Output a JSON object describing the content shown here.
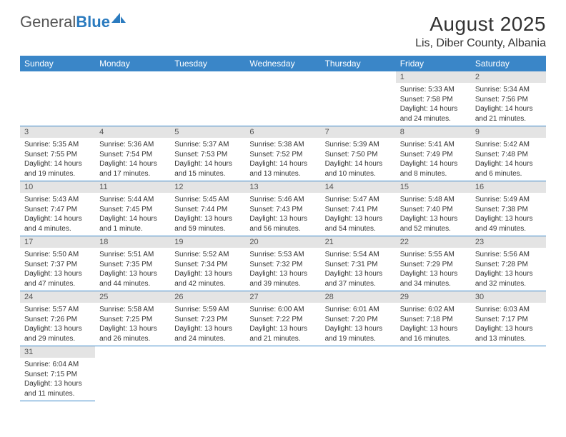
{
  "logo": {
    "text_general": "General",
    "text_blue": "Blue"
  },
  "title": "August 2025",
  "location": "Lis, Diber County, Albania",
  "colors": {
    "header_bg": "#3a86c8",
    "header_text": "#ffffff",
    "daynum_bg": "#e4e4e4",
    "row_border": "#3a86c8",
    "logo_blue": "#2b7bbf"
  },
  "weekdays": [
    "Sunday",
    "Monday",
    "Tuesday",
    "Wednesday",
    "Thursday",
    "Friday",
    "Saturday"
  ],
  "weeks": [
    [
      null,
      null,
      null,
      null,
      null,
      {
        "n": "1",
        "sunrise": "5:33 AM",
        "sunset": "7:58 PM",
        "daylight": "14 hours and 24 minutes."
      },
      {
        "n": "2",
        "sunrise": "5:34 AM",
        "sunset": "7:56 PM",
        "daylight": "14 hours and 21 minutes."
      }
    ],
    [
      {
        "n": "3",
        "sunrise": "5:35 AM",
        "sunset": "7:55 PM",
        "daylight": "14 hours and 19 minutes."
      },
      {
        "n": "4",
        "sunrise": "5:36 AM",
        "sunset": "7:54 PM",
        "daylight": "14 hours and 17 minutes."
      },
      {
        "n": "5",
        "sunrise": "5:37 AM",
        "sunset": "7:53 PM",
        "daylight": "14 hours and 15 minutes."
      },
      {
        "n": "6",
        "sunrise": "5:38 AM",
        "sunset": "7:52 PM",
        "daylight": "14 hours and 13 minutes."
      },
      {
        "n": "7",
        "sunrise": "5:39 AM",
        "sunset": "7:50 PM",
        "daylight": "14 hours and 10 minutes."
      },
      {
        "n": "8",
        "sunrise": "5:41 AM",
        "sunset": "7:49 PM",
        "daylight": "14 hours and 8 minutes."
      },
      {
        "n": "9",
        "sunrise": "5:42 AM",
        "sunset": "7:48 PM",
        "daylight": "14 hours and 6 minutes."
      }
    ],
    [
      {
        "n": "10",
        "sunrise": "5:43 AM",
        "sunset": "7:47 PM",
        "daylight": "14 hours and 4 minutes."
      },
      {
        "n": "11",
        "sunrise": "5:44 AM",
        "sunset": "7:45 PM",
        "daylight": "14 hours and 1 minute."
      },
      {
        "n": "12",
        "sunrise": "5:45 AM",
        "sunset": "7:44 PM",
        "daylight": "13 hours and 59 minutes."
      },
      {
        "n": "13",
        "sunrise": "5:46 AM",
        "sunset": "7:43 PM",
        "daylight": "13 hours and 56 minutes."
      },
      {
        "n": "14",
        "sunrise": "5:47 AM",
        "sunset": "7:41 PM",
        "daylight": "13 hours and 54 minutes."
      },
      {
        "n": "15",
        "sunrise": "5:48 AM",
        "sunset": "7:40 PM",
        "daylight": "13 hours and 52 minutes."
      },
      {
        "n": "16",
        "sunrise": "5:49 AM",
        "sunset": "7:38 PM",
        "daylight": "13 hours and 49 minutes."
      }
    ],
    [
      {
        "n": "17",
        "sunrise": "5:50 AM",
        "sunset": "7:37 PM",
        "daylight": "13 hours and 47 minutes."
      },
      {
        "n": "18",
        "sunrise": "5:51 AM",
        "sunset": "7:35 PM",
        "daylight": "13 hours and 44 minutes."
      },
      {
        "n": "19",
        "sunrise": "5:52 AM",
        "sunset": "7:34 PM",
        "daylight": "13 hours and 42 minutes."
      },
      {
        "n": "20",
        "sunrise": "5:53 AM",
        "sunset": "7:32 PM",
        "daylight": "13 hours and 39 minutes."
      },
      {
        "n": "21",
        "sunrise": "5:54 AM",
        "sunset": "7:31 PM",
        "daylight": "13 hours and 37 minutes."
      },
      {
        "n": "22",
        "sunrise": "5:55 AM",
        "sunset": "7:29 PM",
        "daylight": "13 hours and 34 minutes."
      },
      {
        "n": "23",
        "sunrise": "5:56 AM",
        "sunset": "7:28 PM",
        "daylight": "13 hours and 32 minutes."
      }
    ],
    [
      {
        "n": "24",
        "sunrise": "5:57 AM",
        "sunset": "7:26 PM",
        "daylight": "13 hours and 29 minutes."
      },
      {
        "n": "25",
        "sunrise": "5:58 AM",
        "sunset": "7:25 PM",
        "daylight": "13 hours and 26 minutes."
      },
      {
        "n": "26",
        "sunrise": "5:59 AM",
        "sunset": "7:23 PM",
        "daylight": "13 hours and 24 minutes."
      },
      {
        "n": "27",
        "sunrise": "6:00 AM",
        "sunset": "7:22 PM",
        "daylight": "13 hours and 21 minutes."
      },
      {
        "n": "28",
        "sunrise": "6:01 AM",
        "sunset": "7:20 PM",
        "daylight": "13 hours and 19 minutes."
      },
      {
        "n": "29",
        "sunrise": "6:02 AM",
        "sunset": "7:18 PM",
        "daylight": "13 hours and 16 minutes."
      },
      {
        "n": "30",
        "sunrise": "6:03 AM",
        "sunset": "7:17 PM",
        "daylight": "13 hours and 13 minutes."
      }
    ],
    [
      {
        "n": "31",
        "sunrise": "6:04 AM",
        "sunset": "7:15 PM",
        "daylight": "13 hours and 11 minutes."
      },
      null,
      null,
      null,
      null,
      null,
      null
    ]
  ],
  "labels": {
    "sunrise": "Sunrise: ",
    "sunset": "Sunset: ",
    "daylight": "Daylight: "
  }
}
